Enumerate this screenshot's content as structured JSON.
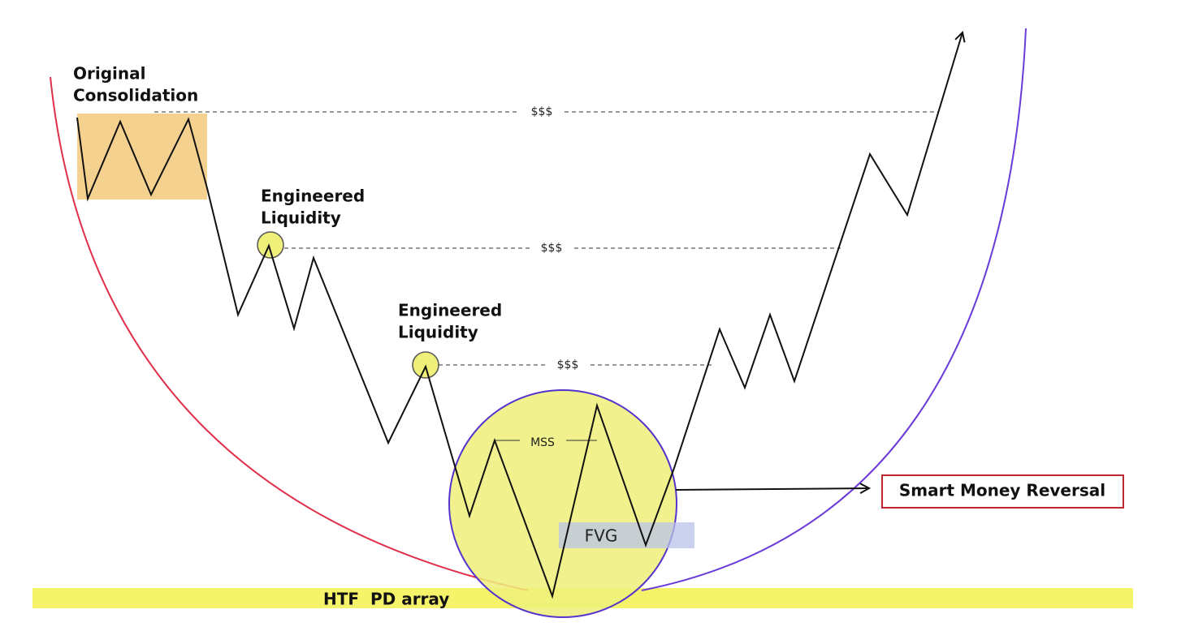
{
  "labels": {
    "original_consolidation": [
      "Original",
      "Consolidation"
    ],
    "engineered_liquidity_1": [
      "Engineered",
      "Liquidity"
    ],
    "engineered_liquidity_2": [
      "Engineered",
      "Liquidity"
    ],
    "liquidity_marks": [
      "$$$",
      "$$$",
      "$$$"
    ],
    "mss": "MSS",
    "fvg": "FVG",
    "smart_money_reversal": "Smart Money Reversal",
    "htf_pd_array": "HTF  PD array"
  }
}
